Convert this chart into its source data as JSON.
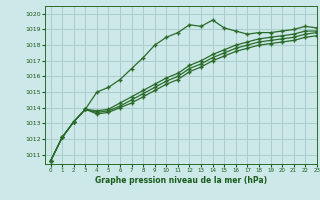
{
  "title": "Graphe pression niveau de la mer (hPa)",
  "bg_color": "#cce8e8",
  "grid_color": "#aacccc",
  "line_color": "#2a6b2a",
  "marker_color": "#2a6b2a",
  "xlim": [
    -0.5,
    23
  ],
  "ylim": [
    1010.4,
    1020.5
  ],
  "yticks": [
    1011,
    1012,
    1013,
    1014,
    1015,
    1016,
    1017,
    1018,
    1019,
    1020
  ],
  "xticks": [
    0,
    1,
    2,
    3,
    4,
    5,
    6,
    7,
    8,
    9,
    10,
    11,
    12,
    13,
    14,
    15,
    16,
    17,
    18,
    19,
    20,
    21,
    22,
    23
  ],
  "series": [
    [
      1010.6,
      1012.1,
      1013.1,
      1013.9,
      1015.0,
      1015.3,
      1015.8,
      1016.5,
      1017.2,
      1018.0,
      1018.5,
      1018.8,
      1019.3,
      1019.2,
      1019.6,
      1019.1,
      1018.9,
      1018.7,
      1018.8,
      1018.8,
      1018.9,
      1019.0,
      1019.2,
      1019.1
    ],
    [
      1010.6,
      1012.1,
      1013.1,
      1013.9,
      1013.8,
      1013.9,
      1014.3,
      1014.7,
      1015.1,
      1015.5,
      1015.9,
      1016.2,
      1016.7,
      1017.0,
      1017.4,
      1017.7,
      1018.0,
      1018.2,
      1018.4,
      1018.5,
      1018.6,
      1018.7,
      1018.9,
      1018.9
    ],
    [
      1010.6,
      1012.1,
      1013.1,
      1013.9,
      1013.7,
      1013.8,
      1014.1,
      1014.5,
      1014.9,
      1015.3,
      1015.7,
      1016.0,
      1016.5,
      1016.8,
      1017.2,
      1017.5,
      1017.8,
      1018.0,
      1018.2,
      1018.3,
      1018.4,
      1018.5,
      1018.7,
      1018.8
    ],
    [
      1010.6,
      1012.1,
      1013.1,
      1013.9,
      1013.6,
      1013.7,
      1014.0,
      1014.3,
      1014.7,
      1015.1,
      1015.5,
      1015.8,
      1016.3,
      1016.6,
      1017.0,
      1017.3,
      1017.6,
      1017.8,
      1018.0,
      1018.1,
      1018.2,
      1018.3,
      1018.5,
      1018.6
    ]
  ]
}
